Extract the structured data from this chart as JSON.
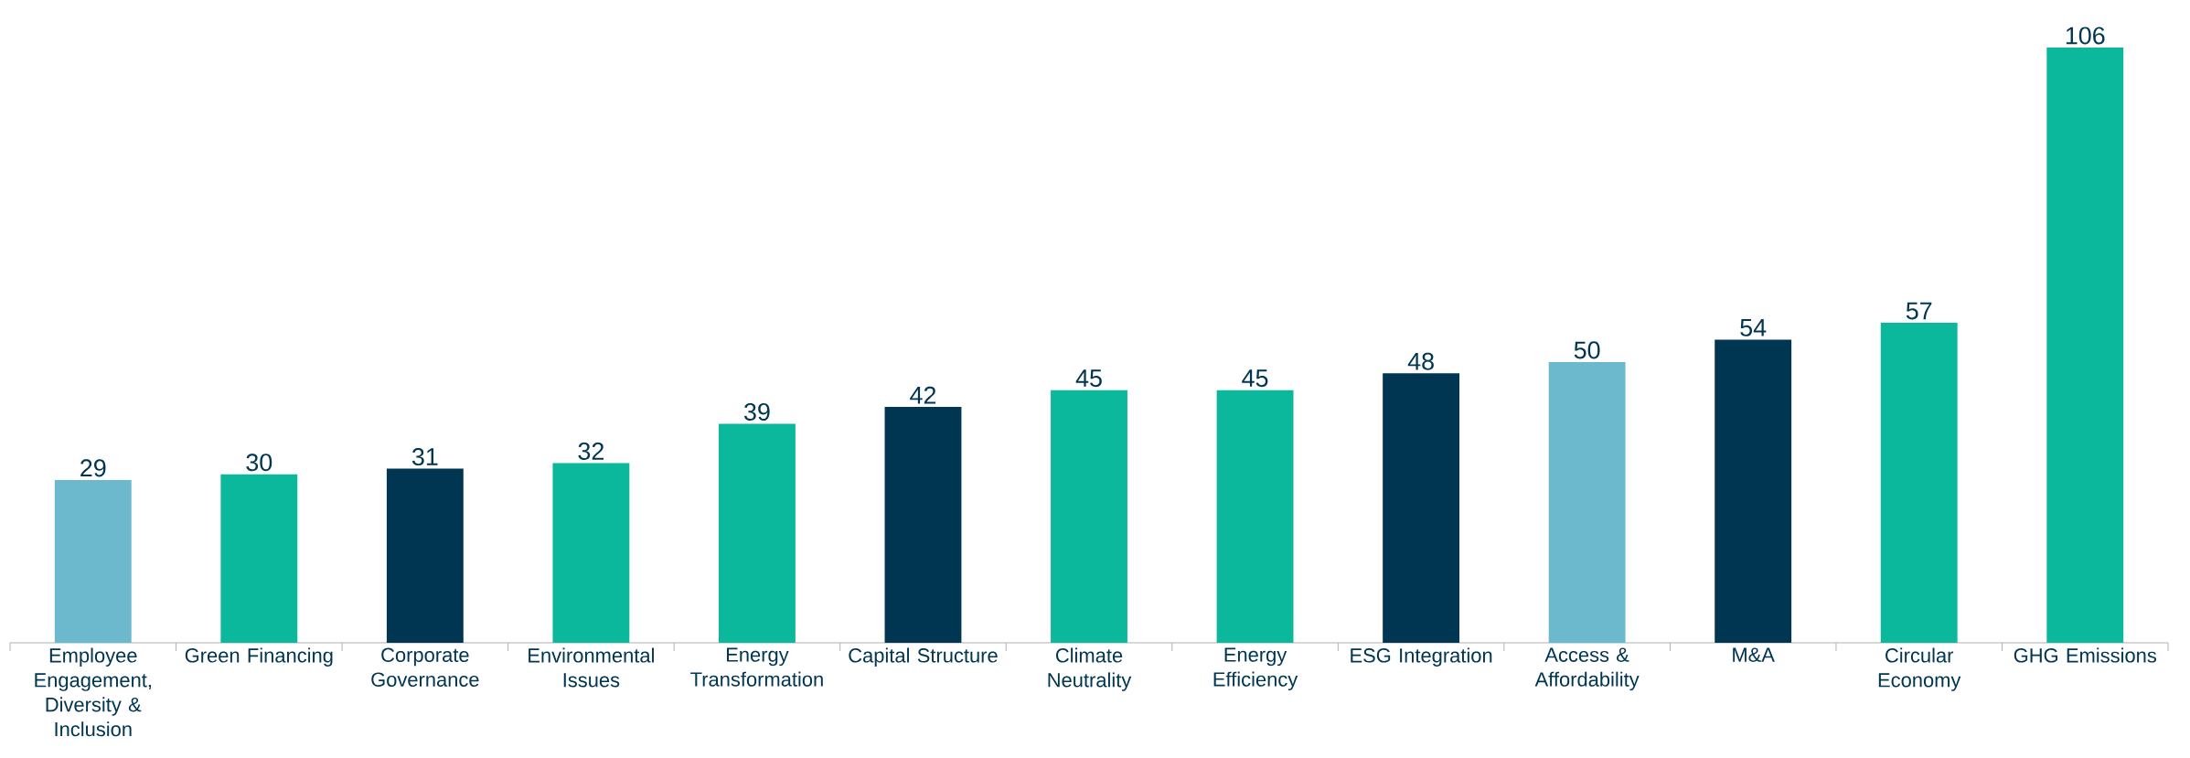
{
  "chart_data": {
    "type": "bar",
    "tick_labels": "x",
    "grid": false,
    "data_labels": true,
    "categories": [
      "Employee Engagement, Diversity & Inclusion",
      "Green Financing",
      "Corporate Governance",
      "Environmental Issues",
      "Energy Transformation",
      "Capital Structure",
      "Climate Neutrality",
      "Energy Efficiency",
      "ESG Integration",
      "Access & Affordability",
      "M&A",
      "Circular Economy",
      "GHG Emissions"
    ],
    "series": [
      {
        "colors": [
          "#6cb8cc",
          "#0bb89b",
          "#003652",
          "#0bb89b",
          "#0bb89b",
          "#003652",
          "#0bb89b",
          "#0bb89b",
          "#003652",
          "#6cb8cc",
          "#003652",
          "#0bb89b",
          "#0bb89b"
        ],
        "values": [
          29,
          30,
          31,
          32,
          39,
          42,
          45,
          45,
          48,
          50,
          54,
          57,
          106
        ]
      }
    ]
  }
}
